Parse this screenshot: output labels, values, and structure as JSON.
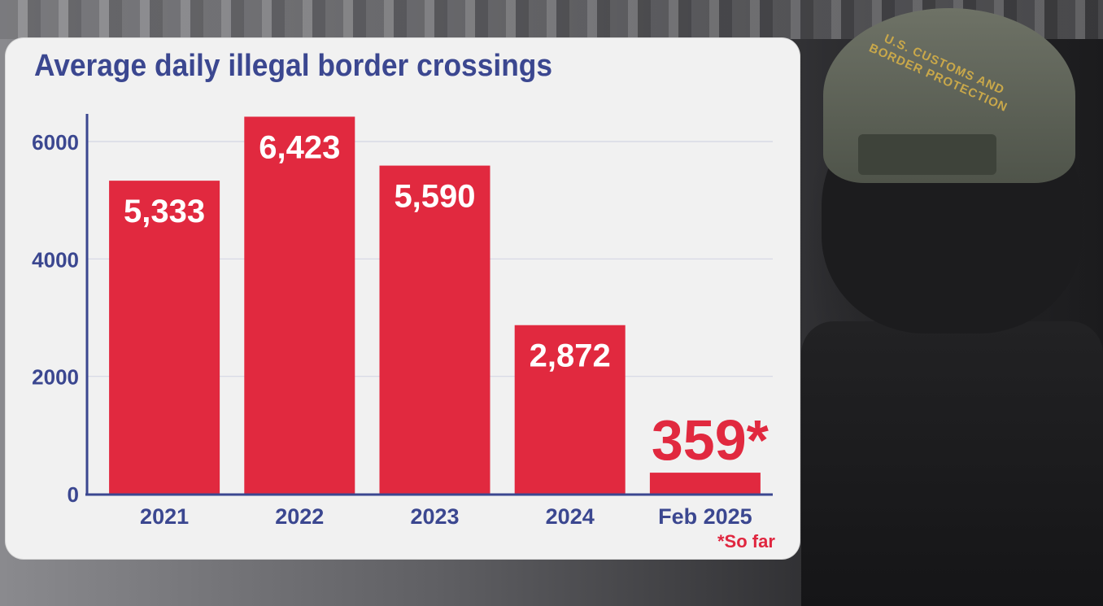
{
  "chart_data": {
    "type": "bar",
    "title": "Average daily illegal border crossings",
    "categories": [
      "2021",
      "2022",
      "2023",
      "2024",
      "Feb 2025"
    ],
    "values": [
      5333,
      6423,
      5590,
      2872,
      359
    ],
    "value_labels": [
      "5,333",
      "6,423",
      "5,590",
      "2,872",
      "359*"
    ],
    "y_ticks": [
      0,
      2000,
      4000,
      6000
    ],
    "y_tick_labels": [
      "0",
      "2000",
      "4000",
      "6000"
    ],
    "ylim": [
      0,
      6700
    ],
    "grid": true,
    "footnote": "*So far",
    "colors": {
      "bar": "#e1293f",
      "axis": "#3b4790",
      "text": "#3b4790",
      "card": "#f1f1f1"
    }
  },
  "background": {
    "cap_text": "U.S. CUSTOMS AND BORDER PROTECTION"
  }
}
